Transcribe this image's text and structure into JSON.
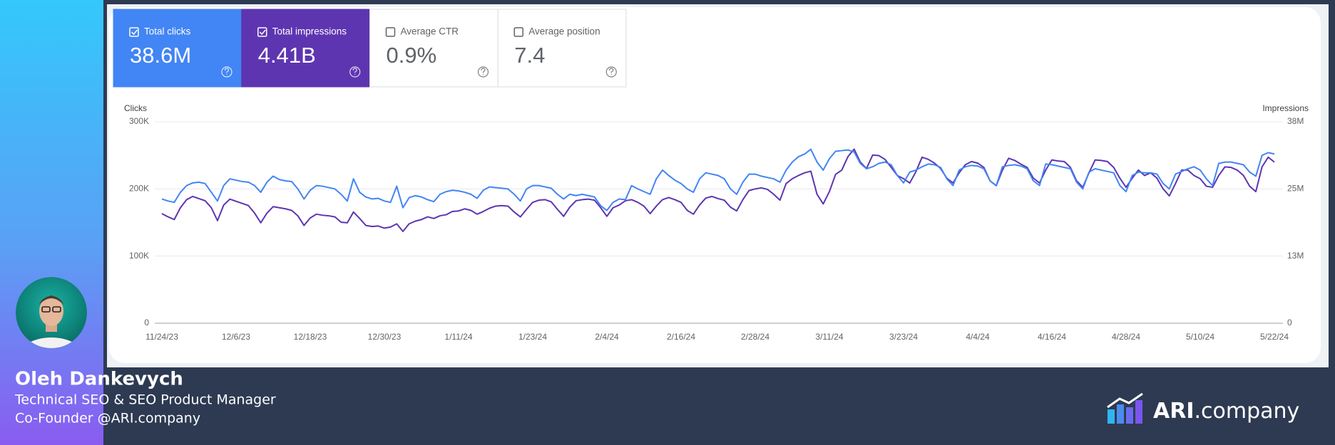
{
  "metrics": [
    {
      "label": "Total clicks",
      "value": "38.6M",
      "selected": true,
      "color": "#4285f4"
    },
    {
      "label": "Total impressions",
      "value": "4.41B",
      "selected": true,
      "color": "#5e35b1"
    },
    {
      "label": "Average CTR",
      "value": "0.9%",
      "selected": false,
      "color": "#ffffff"
    },
    {
      "label": "Average position",
      "value": "7.4",
      "selected": false,
      "color": "#ffffff"
    }
  ],
  "profile": {
    "name": "Oleh Dankevych",
    "lines": [
      "Technical SEO & SEO Product Manager",
      "Co-Founder @ARI.company"
    ]
  },
  "logo": {
    "bold": "ARI",
    "rest": ".company"
  },
  "chart_data": {
    "type": "line",
    "y_label": "Clicks",
    "y2_label": "Impressions",
    "grid": true,
    "categories": [
      "11/24/23",
      null,
      null,
      null,
      null,
      null,
      null,
      null,
      null,
      null,
      null,
      null,
      "12/6/23",
      null,
      null,
      null,
      null,
      null,
      null,
      null,
      null,
      null,
      null,
      null,
      "12/18/23",
      null,
      null,
      null,
      null,
      null,
      null,
      null,
      null,
      null,
      null,
      null,
      "12/30/23",
      null,
      null,
      null,
      null,
      null,
      null,
      null,
      null,
      null,
      null,
      null,
      "1/11/24",
      null,
      null,
      null,
      null,
      null,
      null,
      null,
      null,
      null,
      null,
      null,
      "1/23/24",
      null,
      null,
      null,
      null,
      null,
      null,
      null,
      null,
      null,
      null,
      null,
      "2/4/24",
      null,
      null,
      null,
      null,
      null,
      null,
      null,
      null,
      null,
      null,
      null,
      "2/16/24",
      null,
      null,
      null,
      null,
      null,
      null,
      null,
      null,
      null,
      null,
      null,
      "2/28/24",
      null,
      null,
      null,
      null,
      null,
      null,
      null,
      null,
      null,
      null,
      null,
      "3/11/24",
      null,
      null,
      null,
      null,
      null,
      null,
      null,
      null,
      null,
      null,
      null,
      "3/23/24",
      null,
      null,
      null,
      null,
      null,
      null,
      null,
      null,
      null,
      null,
      null,
      "4/4/24",
      null,
      null,
      null,
      null,
      null,
      null,
      null,
      null,
      null,
      null,
      null,
      "4/16/24",
      null,
      null,
      null,
      null,
      null,
      null,
      null,
      null,
      null,
      null,
      null,
      "4/28/24",
      null,
      null,
      null,
      null,
      null,
      null,
      null,
      null,
      null,
      null,
      null,
      "5/10/24",
      null,
      null,
      null,
      null,
      null,
      null,
      null,
      null,
      null,
      null,
      null,
      "5/22/24"
    ],
    "ylim": [
      0,
      300000
    ],
    "yticks": [
      0,
      {
        "value": 100000,
        "label": "100K"
      },
      {
        "value": 200000,
        "label": "200K"
      },
      {
        "value": 300000,
        "label": "300K"
      }
    ],
    "y2lim": [
      0,
      37500000
    ],
    "y2ticks": [
      0,
      {
        "value": 12500000,
        "label": "13M"
      },
      {
        "value": 25000000,
        "label": "25M"
      },
      {
        "value": 37500000,
        "label": "38M"
      }
    ],
    "series": [
      {
        "name": "Total clicks",
        "color": "#4285f4",
        "values": [
          185000,
          182000,
          180000,
          195000,
          205000,
          209000,
          210000,
          208000,
          195000,
          182000,
          205000,
          215000,
          213000,
          211000,
          210000,
          205000,
          195000,
          210000,
          219000,
          214000,
          212000,
          211000,
          200000,
          185000,
          198000,
          205000,
          204000,
          202000,
          200000,
          192000,
          182000,
          215000,
          195000,
          188000,
          185000,
          186000,
          182000,
          180000,
          204000,
          172000,
          187000,
          190000,
          188000,
          184000,
          181000,
          192000,
          196000,
          198000,
          197000,
          195000,
          192000,
          186000,
          198000,
          203000,
          202000,
          201000,
          200000,
          192000,
          182000,
          200000,
          205000,
          205000,
          203000,
          201000,
          192000,
          185000,
          192000,
          190000,
          192000,
          190000,
          188000,
          175000,
          168000,
          180000,
          185000,
          184000,
          205000,
          200000,
          196000,
          192000,
          215000,
          228000,
          220000,
          213000,
          208000,
          200000,
          195000,
          215000,
          224000,
          222000,
          220000,
          215000,
          200000,
          192000,
          210000,
          222000,
          222000,
          219000,
          217000,
          215000,
          210000,
          228000,
          240000,
          248000,
          252000,
          259000,
          240000,
          228000,
          245000,
          256000,
          257000,
          258000,
          255000,
          238000,
          230000,
          233000,
          238000,
          240000,
          236000,
          220000,
          209000,
          225000,
          228000,
          233000,
          237000,
          236000,
          232000,
          215000,
          205000,
          228000,
          233000,
          235000,
          234000,
          230000,
          212000,
          205000,
          233000,
          235000,
          236000,
          234000,
          230000,
          212000,
          205000,
          237000,
          236000,
          234000,
          232000,
          230000,
          210000,
          200000,
          225000,
          230000,
          228000,
          226000,
          224000,
          205000,
          196000,
          220000,
          225000,
          224000,
          224000,
          222000,
          208000,
          200000,
          222000,
          226000,
          230000,
          233000,
          228000,
          215000,
          205000,
          238000,
          240000,
          240000,
          238000,
          236000,
          225000,
          219000,
          250000,
          254000,
          252000
        ]
      },
      {
        "name": "Total impressions",
        "color": "#5e35b1",
        "axis": "y2",
        "values": [
          20400000,
          19800000,
          19300000,
          21500000,
          23000000,
          23600000,
          23200000,
          22800000,
          21500000,
          19100000,
          22000000,
          23100000,
          22700000,
          22300000,
          21900000,
          20500000,
          18700000,
          20500000,
          21700000,
          21500000,
          21300000,
          21000000,
          20000000,
          18200000,
          19600000,
          20300000,
          20100000,
          20000000,
          19800000,
          18800000,
          18700000,
          20700000,
          19500000,
          18200000,
          18000000,
          18100000,
          17700000,
          17900000,
          18500000,
          17100000,
          18500000,
          19000000,
          19300000,
          19800000,
          19500000,
          20000000,
          20200000,
          20800000,
          20900000,
          21300000,
          21000000,
          20300000,
          20800000,
          21400000,
          21800000,
          21900000,
          21800000,
          20700000,
          19800000,
          21200000,
          22500000,
          22900000,
          23000000,
          22600000,
          21200000,
          19900000,
          21600000,
          22800000,
          23000000,
          23100000,
          22900000,
          21500000,
          19900000,
          21500000,
          22000000,
          22800000,
          23000000,
          22500000,
          21800000,
          20400000,
          21800000,
          23000000,
          23400000,
          23000000,
          22500000,
          21000000,
          20300000,
          22000000,
          23300000,
          23600000,
          23200000,
          22900000,
          21600000,
          20900000,
          23000000,
          24700000,
          25000000,
          25200000,
          24900000,
          24000000,
          22900000,
          26000000,
          26900000,
          27500000,
          28000000,
          28300000,
          24000000,
          22200000,
          24500000,
          27700000,
          28500000,
          31000000,
          32400000,
          30000000,
          28800000,
          31300000,
          31200000,
          30500000,
          29000000,
          27500000,
          26900000,
          26100000,
          28200000,
          30900000,
          30500000,
          29800000,
          28800000,
          27000000,
          26100000,
          28000000,
          29500000,
          30100000,
          29800000,
          29000000,
          26500000,
          25600000,
          28500000,
          30700000,
          30300000,
          29600000,
          29000000,
          27000000,
          26100000,
          28500000,
          30400000,
          30200000,
          30100000,
          29000000,
          26500000,
          25300000,
          28000000,
          30400000,
          30300000,
          30100000,
          29000000,
          27000000,
          25300000,
          27000000,
          28500000,
          27500000,
          28000000,
          27000000,
          25000000,
          23700000,
          26000000,
          28500000,
          28500000,
          27500000,
          26900000,
          25500000,
          25300000,
          27500000,
          29100000,
          29000000,
          28500000,
          27500000,
          25500000,
          24500000,
          29100000,
          30900000,
          30000000
        ]
      }
    ]
  }
}
